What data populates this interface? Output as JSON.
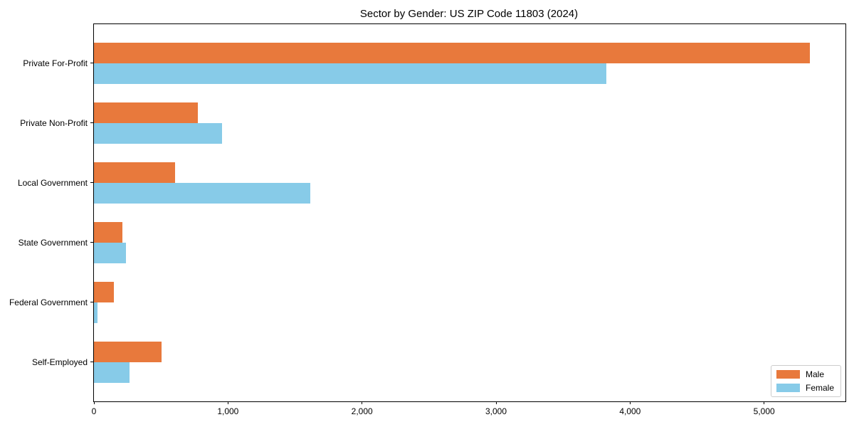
{
  "chart_data": {
    "type": "bar",
    "orientation": "horizontal",
    "title": "Sector by Gender: US ZIP Code 11803 (2024)",
    "xlabel": "",
    "ylabel": "",
    "categories": [
      "Private For-Profit",
      "Private Non-Profit",
      "Local Government",
      "State Government",
      "Federal Government",
      "Self-Employed"
    ],
    "series": [
      {
        "name": "Male",
        "color": "#e8793c",
        "values": [
          5340,
          775,
          605,
          210,
          150,
          505
        ]
      },
      {
        "name": "Female",
        "color": "#87cbe8",
        "values": [
          3825,
          955,
          1615,
          240,
          25,
          265
        ]
      }
    ],
    "xlim": [
      0,
      5607
    ],
    "xticks": [
      0,
      1000,
      2000,
      3000,
      4000,
      5000
    ],
    "xtick_labels": [
      "0",
      "1,000",
      "2,000",
      "3,000",
      "4,000",
      "5,000"
    ],
    "grid": false,
    "legend": {
      "position": "lower right",
      "entries": [
        "Male",
        "Female"
      ]
    }
  }
}
